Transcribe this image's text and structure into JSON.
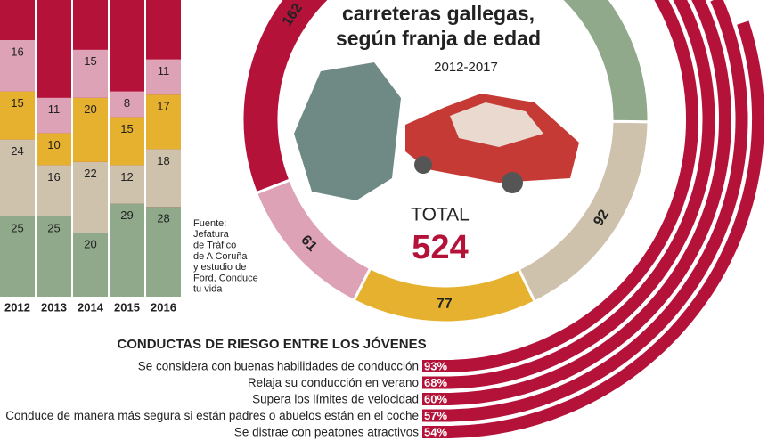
{
  "chart_data": [
    {
      "type": "stacked-bar",
      "categories": [
        "2012",
        "2013",
        "2014",
        "2015",
        "2016"
      ],
      "series": [
        {
          "color": "#8fa98a",
          "values": [
            25,
            25,
            20,
            29,
            28
          ]
        },
        {
          "color": "#cfc2ad",
          "values": [
            24,
            16,
            22,
            12,
            18
          ]
        },
        {
          "color": "#e6b12e",
          "values": [
            15,
            10,
            20,
            15,
            17
          ]
        },
        {
          "color": "#dda2b6",
          "values": [
            16,
            11,
            15,
            8,
            11
          ]
        }
      ]
    },
    {
      "type": "donut",
      "title": [
        "carreteras gallegas,",
        "según franja de edad"
      ],
      "subtitle": "2012-2017",
      "total_label": "TOTAL",
      "total": 524,
      "values": [
        132,
        92,
        77,
        61,
        162
      ],
      "colors": [
        "#8fa98a",
        "#cfc2ad",
        "#e6b12e",
        "#dda2b6",
        "#b5123a"
      ]
    },
    {
      "type": "arc-bar",
      "title": "CONDUCTAS DE RIESGO ENTRE LOS JÓVENES",
      "categories": [
        "Se considera con buenas habilidades de conducción",
        "Relaja su conducción en verano",
        "Supera los límites de velocidad",
        "Conduce de manera más segura si están padres o abuelos están en el coche",
        "Se distrae con peatones atractivos"
      ],
      "values": [
        93,
        68,
        60,
        57,
        54
      ],
      "value_labels": [
        "93%",
        "68%",
        "60%",
        "57%",
        "54%"
      ],
      "color": "#b5123a"
    }
  ],
  "source": [
    "Fuente:",
    "Jefatura",
    "de Tráfico",
    "de A Coruña",
    "y estudio de",
    "Ford, Conduce",
    "tu vida"
  ]
}
